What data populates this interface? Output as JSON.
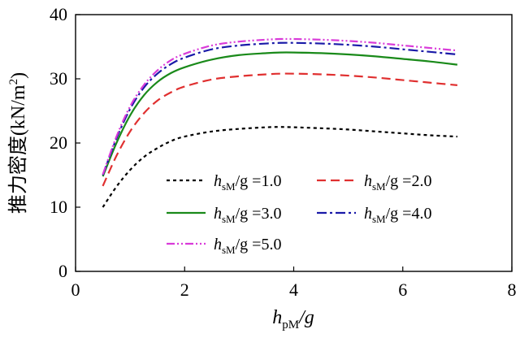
{
  "chart_data": {
    "type": "line",
    "title": "",
    "xlabel": {
      "main": "h",
      "sub": "pM",
      "tail": "/g"
    },
    "ylabel": {
      "main": "推力密度(kN/m",
      "sup": "2",
      "tail": ")"
    },
    "xlim": [
      0,
      8
    ],
    "ylim": [
      0,
      40
    ],
    "xticks": [
      "0",
      "2",
      "4",
      "6",
      "8"
    ],
    "yticks": [
      "0",
      "10",
      "20",
      "30",
      "40"
    ],
    "grid": false,
    "legend_position": "bottom-right",
    "x": [
      0.5,
      0.75,
      1.0,
      1.25,
      1.5,
      1.75,
      2.0,
      2.5,
      3.0,
      3.5,
      3.75,
      4.0,
      4.5,
      5.0,
      5.5,
      6.0,
      6.5,
      7.0
    ],
    "series": [
      {
        "name": "h_sM/g =1.0",
        "legend": {
          "main": "h",
          "sub": "sM",
          "tail": "/g =1.0"
        },
        "color": "#000000",
        "dash": "4,4",
        "values": [
          10.0,
          13.2,
          15.8,
          17.8,
          19.2,
          20.3,
          21.0,
          21.8,
          22.2,
          22.45,
          22.5,
          22.45,
          22.3,
          22.1,
          21.8,
          21.5,
          21.2,
          21.0
        ]
      },
      {
        "name": "h_sM/g =2.0",
        "legend": {
          "main": "h",
          "sub": "sM",
          "tail": "/g =2.0"
        },
        "color": "#e03030",
        "dash": "11,6",
        "values": [
          13.3,
          18.0,
          21.8,
          24.6,
          26.6,
          27.9,
          28.8,
          29.9,
          30.4,
          30.7,
          30.8,
          30.8,
          30.7,
          30.5,
          30.2,
          29.8,
          29.4,
          29.0
        ]
      },
      {
        "name": "h_sM/g =3.0",
        "legend": {
          "main": "h",
          "sub": "sM",
          "tail": "/g =3.0"
        },
        "color": "#1a8a1a",
        "dash": "",
        "values": [
          14.8,
          20.0,
          24.3,
          27.4,
          29.5,
          30.9,
          31.8,
          33.0,
          33.7,
          34.0,
          34.1,
          34.1,
          34.0,
          33.8,
          33.5,
          33.1,
          32.7,
          32.2
        ]
      },
      {
        "name": "h_sM/g =4.0",
        "legend": {
          "main": "h",
          "sub": "sM",
          "tail": "/g =4.0"
        },
        "color": "#1a1aa8",
        "dash": "12,4,3,4",
        "values": [
          15.0,
          20.7,
          25.3,
          28.6,
          30.8,
          32.3,
          33.3,
          34.6,
          35.2,
          35.5,
          35.6,
          35.6,
          35.5,
          35.3,
          35.0,
          34.6,
          34.2,
          33.8
        ]
      },
      {
        "name": "h_sM/g =5.0",
        "legend": {
          "main": "h",
          "sub": "sM",
          "tail": "/g =5.0"
        },
        "color": "#d93bd9",
        "dash": "10,3,2,3,2,3",
        "values": [
          15.1,
          21.0,
          25.7,
          29.0,
          31.3,
          32.9,
          33.9,
          35.2,
          35.8,
          36.1,
          36.2,
          36.2,
          36.1,
          35.9,
          35.6,
          35.2,
          34.8,
          34.4
        ]
      }
    ]
  }
}
